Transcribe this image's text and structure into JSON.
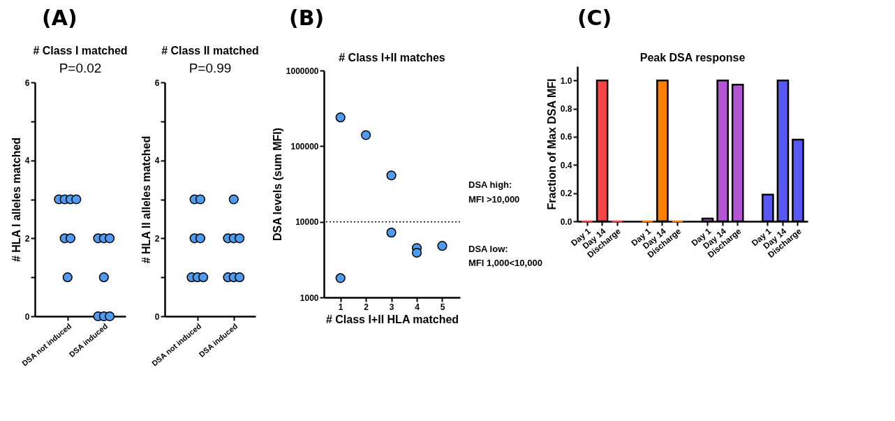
{
  "chart_data": [
    {
      "type": "scatter",
      "title": "# Class I matched",
      "subtitle": "P=0.02",
      "ylabel": "# HLA I alleles matched",
      "annotations": [
        "(A)"
      ],
      "categories": [
        "DSA not induced",
        "DSA induced"
      ],
      "ylim": [
        0,
        6
      ],
      "yticks": [
        0,
        {
          "value": 1,
          "label": null
        },
        2,
        {
          "value": 3,
          "label": null
        },
        4,
        {
          "value": 5,
          "label": null
        },
        6
      ],
      "grid": false,
      "legend": false,
      "marker": "circle",
      "series": [
        {
          "color": "#4f9bef",
          "x": [
            "DSA not induced",
            "DSA not induced",
            "DSA not induced",
            "DSA not induced",
            "DSA not induced",
            "DSA not induced",
            "DSA not induced",
            "DSA induced",
            "DSA induced",
            "DSA induced",
            "DSA induced",
            "DSA induced",
            "DSA induced",
            "DSA induced"
          ],
          "values": [
            3,
            3,
            3,
            3,
            2,
            2,
            1,
            2,
            2,
            2,
            1,
            0,
            0,
            0
          ]
        }
      ]
    },
    {
      "type": "scatter",
      "title": "# Class II matched",
      "subtitle": "P=0.99",
      "ylabel": "# HLA II alleles matched",
      "categories": [
        "DSA not induced",
        "DSA induced"
      ],
      "ylim": [
        0,
        6
      ],
      "yticks": [
        0,
        {
          "value": 1,
          "label": null
        },
        2,
        {
          "value": 3,
          "label": null
        },
        4,
        {
          "value": 5,
          "label": null
        },
        6
      ],
      "grid": false,
      "legend": false,
      "marker": "circle",
      "series": [
        {
          "color": "#4f9bef",
          "x": [
            "DSA not induced",
            "DSA not induced",
            "DSA not induced",
            "DSA not induced",
            "DSA not induced",
            "DSA not induced",
            "DSA not induced",
            "DSA induced",
            "DSA induced",
            "DSA induced",
            "DSA induced",
            "DSA induced",
            "DSA induced",
            "DSA induced"
          ],
          "values": [
            3,
            3,
            2,
            2,
            1,
            1,
            1,
            3,
            2,
            2,
            2,
            1,
            1,
            1
          ]
        }
      ]
    },
    {
      "type": "scatter",
      "title": "# Class I+II matches",
      "xlabel": "# Class I+II HLA matched",
      "ylabel": "DSA levels (sum MFI)",
      "annotations": [
        "(B)",
        "DSA high:\nMFI >10,000",
        "DSA low:\nMFI 1,000<10,000"
      ],
      "x": [
        1,
        1,
        2,
        3,
        3,
        4,
        4,
        5
      ],
      "xlim": [
        0.35,
        5.7
      ],
      "xticks": [
        1,
        2,
        3,
        4,
        5
      ],
      "ylim": [
        1000,
        1000000
      ],
      "yticks": [
        1000,
        10000,
        100000,
        1000000
      ],
      "log": "y",
      "grid": false,
      "legend": false,
      "marker": "circle",
      "ref_lines": [
        {
          "axis": "y",
          "value": 10000,
          "line_style": "dotted",
          "color": "#000000"
        }
      ],
      "series": [
        {
          "color": "#4f9bef",
          "values": [
            240000,
            1800,
            140000,
            41000,
            7200,
            4500,
            3900,
            4800
          ]
        }
      ]
    },
    {
      "type": "bar",
      "title": "Peak DSA response",
      "ylabel": "Fraction of Max DSA MFI",
      "annotations": [
        "(C)"
      ],
      "categories": [
        "Day 1",
        "Day 14",
        "Discharge",
        "Day 1",
        "Day 14",
        "Discharge",
        "Day 1",
        "Day 14",
        "Discharge",
        "Day 1",
        "Day 14",
        "Discharge"
      ],
      "ylim": [
        0,
        1.1
      ],
      "yticks": [
        {
          "value": 0,
          "label": "0.0"
        },
        0.2,
        0.4,
        0.6,
        0.8,
        {
          "value": 1,
          "label": "1.0"
        }
      ],
      "grid": false,
      "values": [
        0,
        1,
        0,
        0,
        1,
        0,
        0.02,
        1,
        0.97,
        0.19,
        1,
        0.58
      ],
      "colors": [
        "#f44646",
        "#f44646",
        "#f44646",
        "#ff8000",
        "#ff8000",
        "#ff8000",
        "#b455d6",
        "#b455d6",
        "#b455d6",
        "#5858f5",
        "#5858f5",
        "#5858f5"
      ]
    }
  ]
}
